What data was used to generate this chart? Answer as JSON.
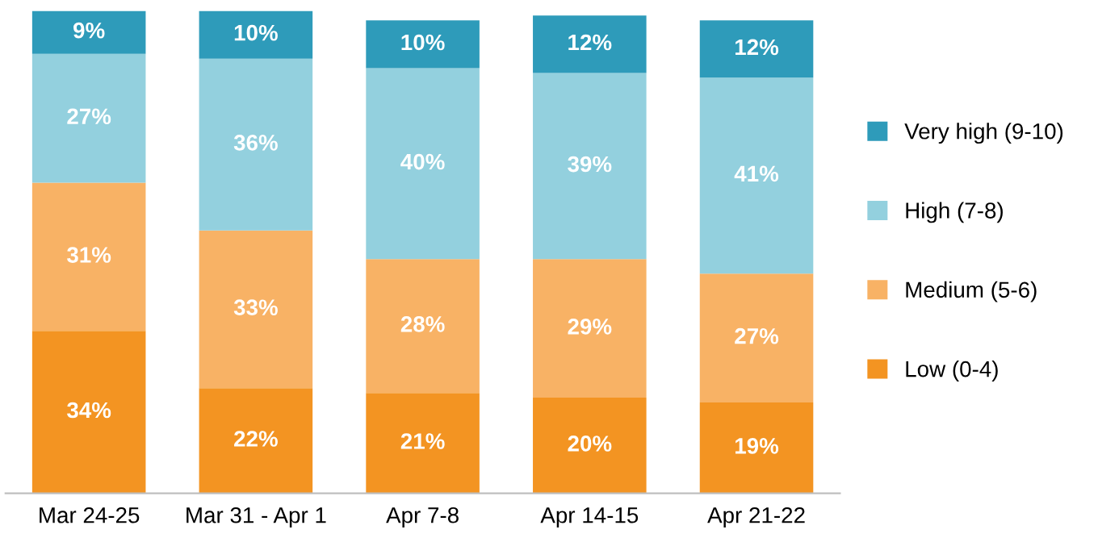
{
  "chart_data": {
    "type": "bar",
    "stacked": true,
    "legend": "right",
    "grid": false,
    "categories": [
      "Mar 24-25",
      "Mar 31 - Apr 1",
      "Apr 7-8",
      "Apr 14-15",
      "Apr 21-22"
    ],
    "series": [
      {
        "name": "Low (0-4)",
        "color": "#f39422",
        "values": [
          34,
          22,
          21,
          20,
          19
        ],
        "value_labels": [
          "34%",
          "22%",
          "21%",
          "20%",
          "19%"
        ]
      },
      {
        "name": "Medium (5-6)",
        "color": "#f8b265",
        "values": [
          31,
          33,
          28,
          29,
          27
        ],
        "value_labels": [
          "31%",
          "33%",
          "28%",
          "29%",
          "27%"
        ]
      },
      {
        "name": "High (7-8)",
        "color": "#93d0de",
        "values": [
          27,
          36,
          40,
          39,
          41
        ],
        "value_labels": [
          "27%",
          "36%",
          "40%",
          "39%",
          "41%"
        ]
      },
      {
        "name": "Very high (9-10)",
        "color": "#2e9bba",
        "values": [
          9,
          10,
          10,
          12,
          12
        ],
        "value_labels": [
          "9%",
          "10%",
          "10%",
          "12%",
          "12%"
        ]
      }
    ]
  }
}
